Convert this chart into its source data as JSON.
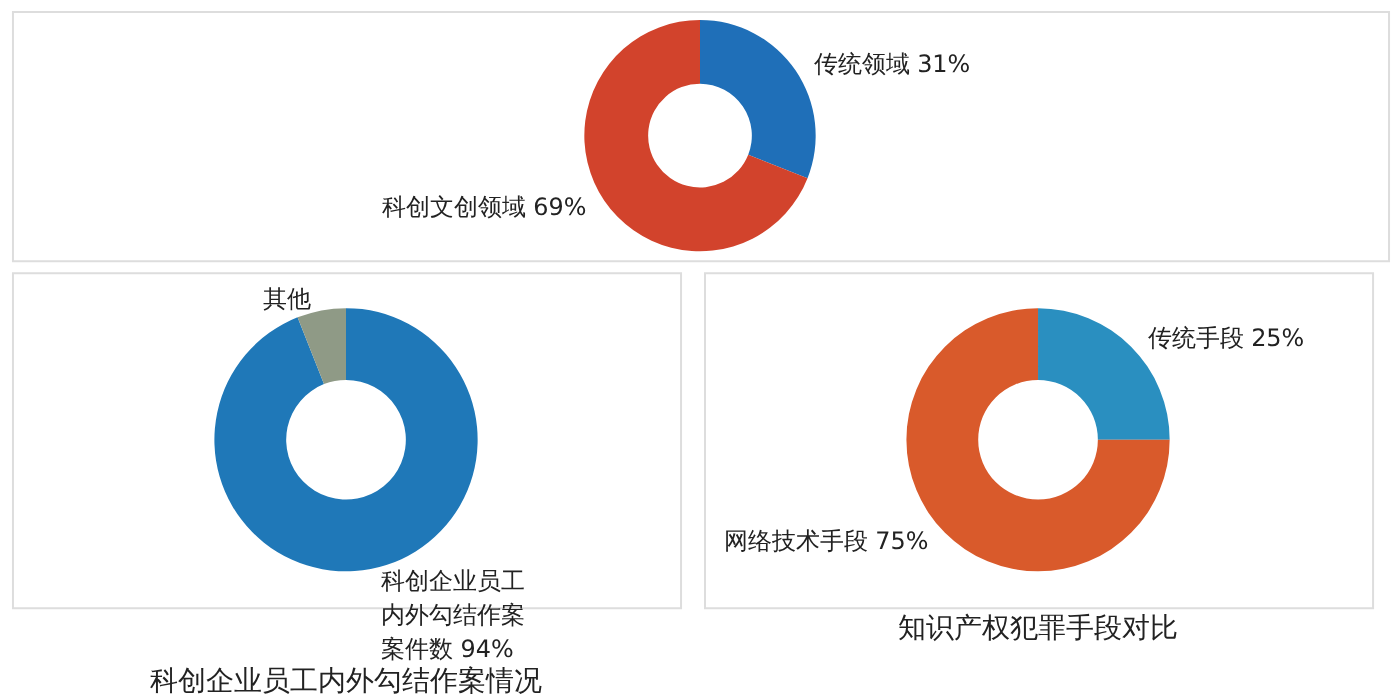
{
  "chart_data": [
    {
      "type": "donut",
      "categories": [
        "传统领域",
        "科创文创领域"
      ],
      "values": [
        31,
        69
      ],
      "colors": [
        "#1f6fb8",
        "#d2432c"
      ],
      "value_labels": [
        "31%",
        "69%"
      ]
    },
    {
      "type": "donut",
      "title": "科创企业员工内外勾结作案情况",
      "categories": [
        "科创企业员工内外勾结作案案件数",
        "其他"
      ],
      "values": [
        94,
        6
      ],
      "colors": [
        "#1f78b8",
        "#8f9a86"
      ],
      "value_labels": [
        "94%",
        null
      ]
    },
    {
      "type": "donut",
      "title": "知识产权犯罪手段对比",
      "categories": [
        "传统手段",
        "网络技术手段"
      ],
      "values": [
        25,
        75
      ],
      "colors": [
        "#2a8fc0",
        "#d95a2b"
      ],
      "value_labels": [
        "25%",
        "75%"
      ]
    }
  ]
}
